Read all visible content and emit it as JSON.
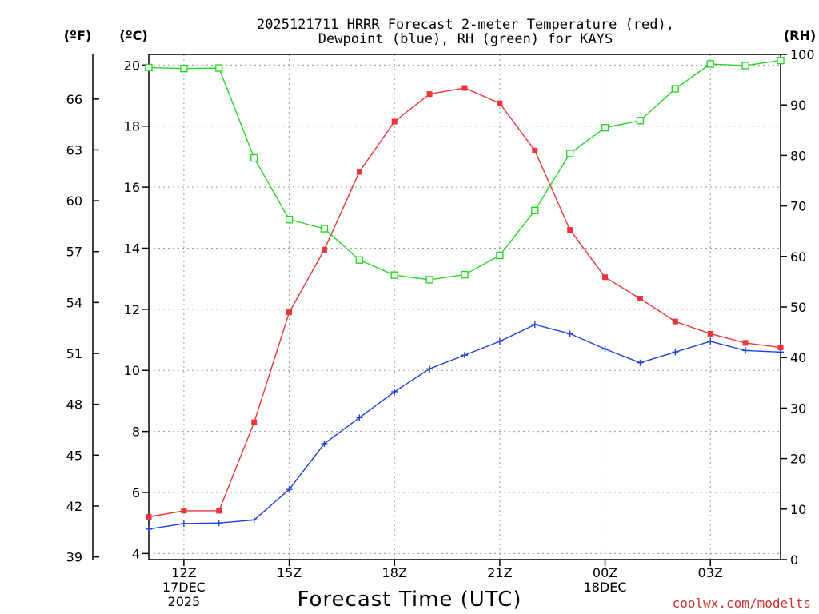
{
  "chart_data": {
    "type": "line",
    "title_lines": [
      "2025121711 HRRR Forecast 2-meter Temperature (red),",
      "Dewpoint (blue), RH (green) for KAYS"
    ],
    "unit_labels": {
      "fahrenheit": "(ºF)",
      "celsius": "(ºC)",
      "rh": "(RH)"
    },
    "xlabel": "Forecast Time (UTC)",
    "credit": "coolwx.com/modelts",
    "x_hours": [
      0,
      1,
      2,
      3,
      4,
      5,
      6,
      7,
      8,
      9,
      10,
      11,
      12,
      13,
      14,
      15,
      16,
      17,
      18
    ],
    "x_range": [
      0,
      18
    ],
    "x_ticks": [
      {
        "hour": 1,
        "lines": [
          "12Z",
          "17DEC",
          "2025"
        ]
      },
      {
        "hour": 4,
        "lines": [
          "15Z"
        ]
      },
      {
        "hour": 7,
        "lines": [
          "18Z"
        ]
      },
      {
        "hour": 10,
        "lines": [
          "21Z"
        ]
      },
      {
        "hour": 13,
        "lines": [
          "00Z",
          "18DEC"
        ]
      },
      {
        "hour": 16,
        "lines": [
          "03Z"
        ]
      }
    ],
    "y_celsius": {
      "range": [
        3.8,
        20.35
      ],
      "ticks": [
        4,
        6,
        8,
        10,
        12,
        14,
        16,
        18,
        20
      ]
    },
    "y_fahrenheit": {
      "ticks": [
        39,
        42,
        45,
        48,
        51,
        54,
        57,
        60,
        63,
        66
      ]
    },
    "y_rh": {
      "range": [
        0,
        100
      ],
      "ticks": [
        0,
        10,
        20,
        30,
        40,
        50,
        60,
        70,
        80,
        90,
        100
      ]
    },
    "series": [
      {
        "name": "Temperature",
        "units": "C",
        "axis": "celsius",
        "color": "#e8363b",
        "marker": "filled-square",
        "values": [
          5.2,
          5.4,
          5.4,
          8.3,
          11.9,
          13.95,
          16.5,
          18.15,
          19.05,
          19.25,
          18.75,
          17.2,
          14.6,
          13.05,
          12.35,
          11.6,
          11.2,
          10.9,
          10.75
        ]
      },
      {
        "name": "Dewpoint",
        "units": "C",
        "axis": "celsius",
        "color": "#1f3fe0",
        "marker": "plus",
        "values": [
          4.8,
          4.98,
          5.0,
          5.1,
          6.1,
          7.6,
          8.45,
          9.3,
          10.05,
          10.5,
          10.95,
          11.5,
          11.2,
          10.7,
          10.25,
          10.6,
          10.95,
          10.65,
          10.6
        ]
      },
      {
        "name": "RH",
        "units": "%",
        "axis": "rh",
        "color": "#27d627",
        "marker": "open-square",
        "values": [
          97.4,
          97.2,
          97.3,
          79.5,
          67.3,
          65.5,
          59.3,
          56.3,
          55.4,
          56.4,
          60.2,
          69.1,
          80.4,
          85.5,
          86.9,
          93.2,
          98.1,
          97.8,
          98.8
        ]
      }
    ]
  }
}
